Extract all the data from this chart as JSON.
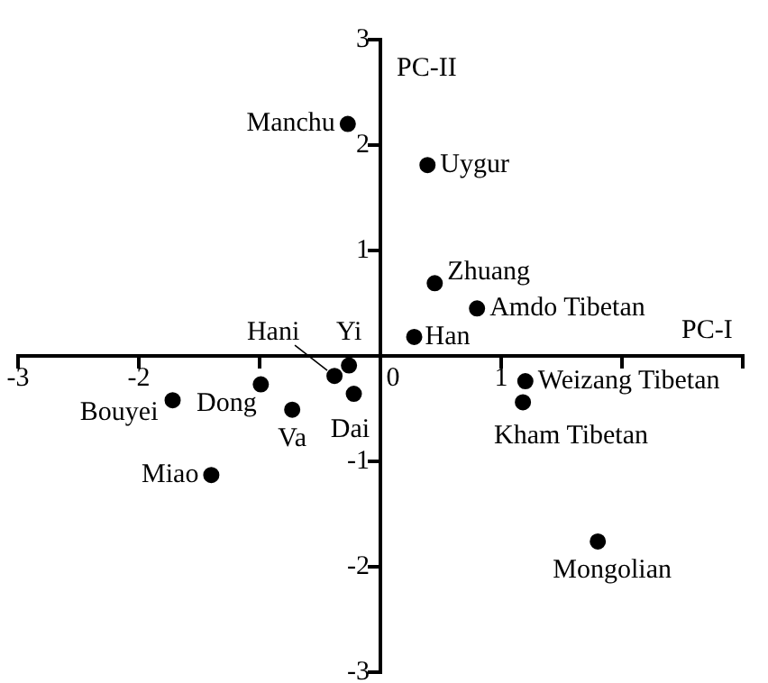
{
  "chart_data": {
    "type": "scatter",
    "xlabel": "PC-I",
    "ylabel": "PC-II",
    "x": [
      -0.27,
      0.39,
      0.45,
      0.8,
      0.28,
      -0.38,
      -0.26,
      -0.22,
      -0.99,
      -1.72,
      -0.73,
      -1.4,
      1.2,
      1.18,
      1.8
    ],
    "values": [
      2.2,
      1.81,
      0.69,
      0.45,
      0.18,
      -0.19,
      -0.09,
      -0.36,
      -0.27,
      -0.42,
      -0.51,
      -1.13,
      -0.24,
      -0.44,
      -1.76
    ],
    "color": "#000000",
    "marker": "circle",
    "grid": false,
    "xlim": [
      -3,
      3
    ],
    "xticks": [
      -3,
      -2,
      {
        "value": -1,
        "label": null
      },
      0,
      1,
      {
        "value": 2,
        "label": null
      },
      {
        "value": 3,
        "label": null
      }
    ],
    "ylim": [
      -3,
      3
    ],
    "yticks": [
      -3,
      -2,
      -1,
      {
        "value": 0,
        "label": null
      },
      1,
      2,
      3
    ],
    "annotations": [
      {
        "text": "Manchu",
        "x": -0.27,
        "y": 2.2
      },
      {
        "text": "Uygur",
        "x": 0.39,
        "y": 1.81
      },
      {
        "text": "Zhuang",
        "x": 0.45,
        "y": 0.69
      },
      {
        "text": "Amdo Tibetan",
        "x": 0.8,
        "y": 0.45
      },
      {
        "text": "Han",
        "x": 0.28,
        "y": 0.18
      },
      {
        "text": "Hani",
        "x": -0.38,
        "y": -0.19
      },
      {
        "text": "Yi",
        "x": -0.26,
        "y": -0.09
      },
      {
        "text": "Dai",
        "x": -0.22,
        "y": -0.36
      },
      {
        "text": "Dong",
        "x": -0.99,
        "y": -0.27
      },
      {
        "text": "Bouyei",
        "x": -1.72,
        "y": -0.42
      },
      {
        "text": "Va",
        "x": -0.73,
        "y": -0.51
      },
      {
        "text": "Miao",
        "x": -1.4,
        "y": -1.13
      },
      {
        "text": "Weizang Tibetan",
        "x": 1.2,
        "y": -0.24
      },
      {
        "text": "Kham Tibetan",
        "x": 1.18,
        "y": -0.44
      },
      {
        "text": "Mongolian",
        "x": 1.8,
        "y": -1.76
      }
    ]
  }
}
